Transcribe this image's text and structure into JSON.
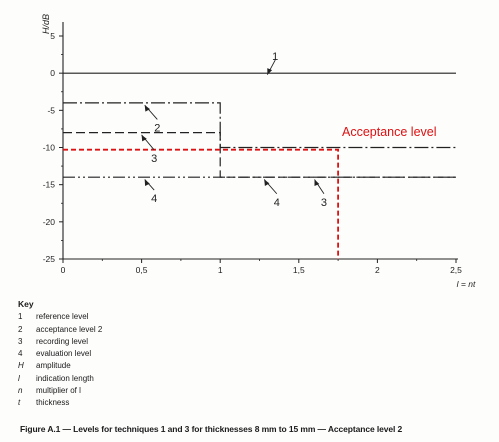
{
  "chart_data": {
    "type": "line",
    "ylabel": "H/dB",
    "xlabel": "l = nt",
    "xlim": [
      0,
      2.5
    ],
    "ylim": [
      -25,
      5
    ],
    "x_ticks": [
      "0",
      "0,5",
      "1",
      "1,5",
      "2",
      "2,5"
    ],
    "y_ticks": [
      "5",
      "0",
      "-5",
      "-10",
      "-15",
      "-20",
      "-25"
    ],
    "grid": false,
    "series": [
      {
        "name": "1",
        "color": "#222222",
        "style": "solid",
        "x": [
          0,
          2.5
        ],
        "y": [
          0,
          0
        ]
      },
      {
        "name": "2",
        "color": "#222222",
        "style": "dash-dot",
        "x": [
          0,
          1,
          1,
          2.5
        ],
        "y": [
          -4,
          -4,
          -10,
          -10
        ]
      },
      {
        "name": "3",
        "color": "#222222",
        "style": "dash",
        "x": [
          0,
          1,
          1,
          2.5
        ],
        "y": [
          -8,
          -8,
          -14,
          -14
        ]
      },
      {
        "name": "4",
        "color": "#222222",
        "style": "dash-dot-dot",
        "x": [
          0,
          2.5
        ],
        "y": [
          -14,
          -14
        ]
      },
      {
        "name": "Acceptance level",
        "color": "#dd1111",
        "style": "red-dash",
        "x": [
          0,
          1.75,
          1.75
        ],
        "y": [
          -10.3,
          -10.3,
          -25
        ]
      }
    ],
    "annotations": [
      {
        "text": "1",
        "x": 1.35,
        "y": 2.3,
        "ax": 1.3,
        "ay": -0.2
      },
      {
        "text": "2",
        "x": 0.6,
        "y": -7.3,
        "ax": 0.52,
        "ay": -4.3
      },
      {
        "text": "3",
        "x": 0.58,
        "y": -11.4,
        "ax": 0.5,
        "ay": -8.3
      },
      {
        "text": "4",
        "x": 0.58,
        "y": -16.8,
        "ax": 0.52,
        "ay": -14.3
      },
      {
        "text": "4",
        "x": 1.36,
        "y": -17.3,
        "ax": 1.28,
        "ay": -14.3
      },
      {
        "text": "3",
        "x": 1.66,
        "y": -17.3,
        "ax": 1.6,
        "ay": -14.3
      }
    ],
    "acceptance_label": "Acceptance level"
  },
  "key": {
    "title": "Key",
    "items": [
      {
        "symbol": "1",
        "text": "reference level",
        "italic": false
      },
      {
        "symbol": "2",
        "text": "acceptance level 2",
        "italic": false
      },
      {
        "symbol": "3",
        "text": "recording level",
        "italic": false
      },
      {
        "symbol": "4",
        "text": "evaluation level",
        "italic": false
      },
      {
        "symbol": "H",
        "text": "amplitude",
        "italic": true
      },
      {
        "symbol": "l",
        "text": "indication length",
        "italic": true
      },
      {
        "symbol": "n",
        "text": "multiplier of l",
        "italic": true
      },
      {
        "symbol": "t",
        "text": "thickness",
        "italic": true
      }
    ]
  },
  "caption": "Figure A.1 — Levels for techniques 1 and 3 for thicknesses 8 mm to 15 mm — Acceptance level 2"
}
